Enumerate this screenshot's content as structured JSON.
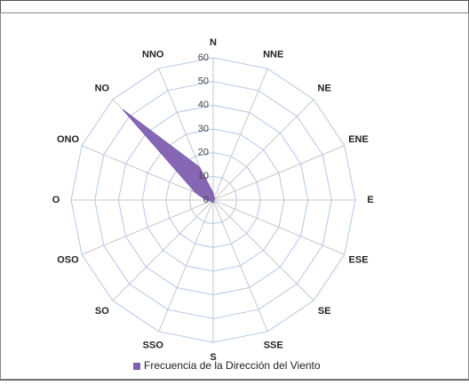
{
  "chart_data": {
    "type": "radar",
    "categories": [
      "N",
      "NNE",
      "NE",
      "ENE",
      "E",
      "ESE",
      "SE",
      "SSE",
      "S",
      "SSO",
      "SO",
      "OSO",
      "O",
      "ONO",
      "NO",
      "NNO"
    ],
    "series": [
      {
        "name": "Frecuencia de la Dirección del Viento",
        "color": "#7f5fb0",
        "values": [
          3,
          1,
          1,
          0,
          0,
          0,
          0,
          1,
          1,
          1,
          1,
          1,
          3,
          8,
          54,
          15
        ]
      }
    ],
    "ylim": [
      0,
      60
    ],
    "yticks": [
      0,
      10,
      20,
      30,
      40,
      50,
      60
    ],
    "grid": true,
    "legend": "bottom"
  }
}
